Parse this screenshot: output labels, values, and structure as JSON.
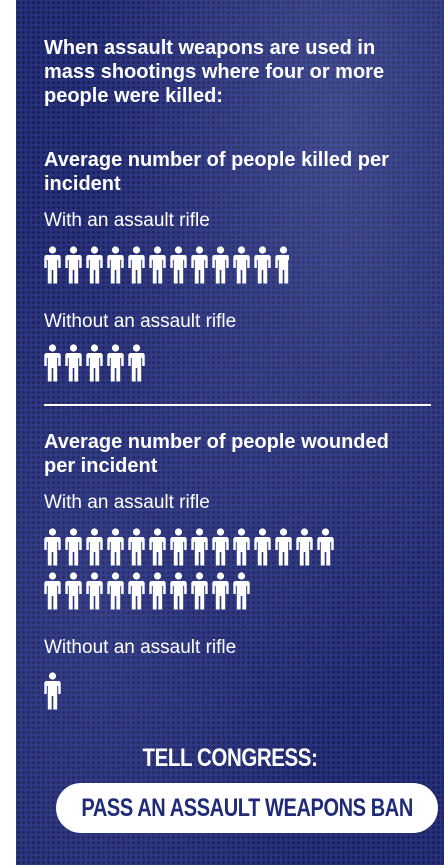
{
  "colors": {
    "background": "#27307a",
    "text": "#ffffff",
    "button_text": "#1f2a78"
  },
  "intro": "When assault weapons are used in mass shootings where four or more people were killed:",
  "killed": {
    "heading": "Average number of people killed per incident",
    "with_label": "With an assault rifle",
    "with_count": 11.8,
    "without_label": "Without an assault rifle",
    "without_count": 5
  },
  "wounded": {
    "heading": "Average number of people wounded per incident",
    "with_label": "With an assault rifle",
    "with_count": 24,
    "without_label": "Without an assault rifle",
    "without_count": 1
  },
  "cta": {
    "title": "TELL CONGRESS:",
    "button_label": "PASS AN ASSAULT WEAPONS BAN"
  },
  "icons": {
    "person": "person-icon"
  }
}
